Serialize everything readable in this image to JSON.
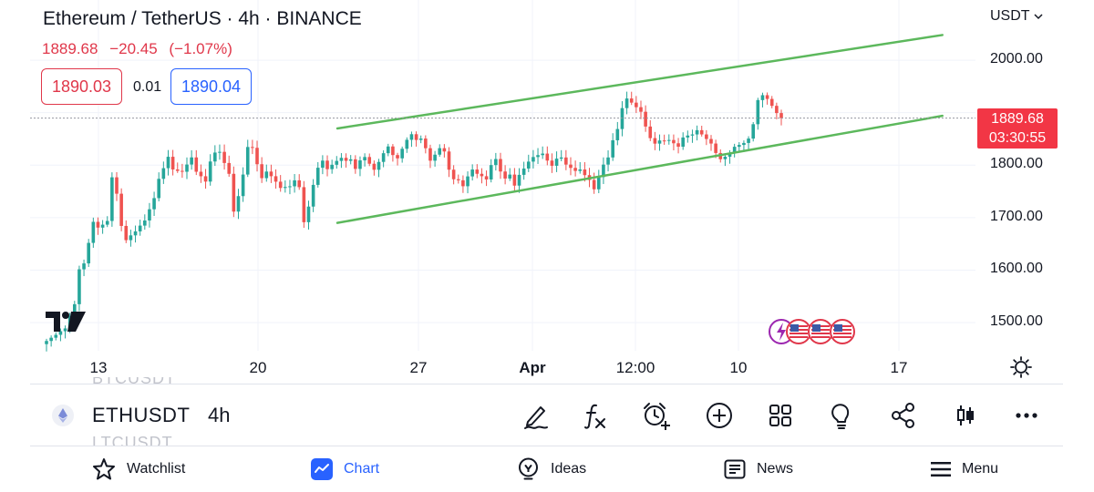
{
  "header": {
    "title": "Ethereum / TetherUS · 4h · BINANCE",
    "last": "1889.68",
    "change": "−20.45",
    "change_pct": "(−1.07%)"
  },
  "order": {
    "bid": "1890.03",
    "spread": "0.01",
    "ask": "1890.04"
  },
  "currency": "USDT",
  "axes": {
    "y_labels": [
      "2000.00",
      "1800.00",
      "1700.00",
      "1600.00",
      "1500.00"
    ],
    "x_labels": [
      {
        "label": "13",
        "bold": false
      },
      {
        "label": "20",
        "bold": false
      },
      {
        "label": "27",
        "bold": false
      },
      {
        "label": "Apr",
        "bold": true
      },
      {
        "label": "12:00",
        "bold": false
      },
      {
        "label": "10",
        "bold": false
      },
      {
        "label": "17",
        "bold": false
      }
    ]
  },
  "last_price_label": {
    "price": "1889.68",
    "countdown": "03:30:55"
  },
  "colors": {
    "up": "#26a69a",
    "down": "#ef5350",
    "channel": "#5cb85c",
    "accent": "#2962ff",
    "last": "#f23645"
  },
  "chart_data": {
    "type": "candlestick",
    "interval": "4h",
    "ylim": [
      1455,
      2080
    ],
    "last_price": 1889.68,
    "channel": [
      {
        "name": "upper",
        "from": {
          "t": 0.325,
          "price": 1870
        },
        "to": {
          "t": 0.965,
          "price": 2048
        }
      },
      {
        "name": "lower",
        "from": {
          "t": 0.325,
          "price": 1690
        },
        "to": {
          "t": 0.965,
          "price": 1894
        }
      }
    ],
    "close_path": [
      [
        0,
        1465
      ],
      [
        2,
        1470
      ],
      [
        4,
        1480
      ],
      [
        6,
        1530
      ],
      [
        7,
        1600
      ],
      [
        8,
        1615
      ],
      [
        10,
        1700
      ],
      [
        11,
        1690
      ],
      [
        13,
        1700
      ],
      [
        14,
        1780
      ],
      [
        15,
        1745
      ],
      [
        16,
        1680
      ],
      [
        17,
        1650
      ],
      [
        19,
        1665
      ],
      [
        21,
        1690
      ],
      [
        23,
        1740
      ],
      [
        24,
        1780
      ],
      [
        26,
        1825
      ],
      [
        27,
        1800
      ],
      [
        29,
        1790
      ],
      [
        31,
        1810
      ],
      [
        32,
        1780
      ],
      [
        34,
        1760
      ],
      [
        35,
        1800
      ],
      [
        36,
        1820
      ],
      [
        37,
        1825
      ],
      [
        39,
        1790
      ],
      [
        40,
        1720
      ],
      [
        41,
        1750
      ],
      [
        42,
        1790
      ],
      [
        43,
        1840
      ],
      [
        44,
        1835
      ],
      [
        45,
        1800
      ],
      [
        46,
        1770
      ],
      [
        47,
        1780
      ],
      [
        49,
        1760
      ],
      [
        50,
        1750
      ],
      [
        52,
        1760
      ],
      [
        53,
        1775
      ],
      [
        54,
        1765
      ],
      [
        55,
        1700
      ],
      [
        56,
        1730
      ],
      [
        57,
        1770
      ],
      [
        58,
        1800
      ],
      [
        59,
        1810
      ],
      [
        60,
        1790
      ],
      [
        61,
        1795
      ],
      [
        62,
        1800
      ],
      [
        63,
        1805
      ],
      [
        64,
        1800
      ],
      [
        65,
        1805
      ],
      [
        66,
        1790
      ],
      [
        67,
        1810
      ],
      [
        68,
        1820
      ],
      [
        69,
        1810
      ],
      [
        70,
        1800
      ],
      [
        71,
        1815
      ],
      [
        72,
        1830
      ],
      [
        73,
        1840
      ],
      [
        74,
        1820
      ],
      [
        75,
        1810
      ],
      [
        76,
        1825
      ],
      [
        77,
        1840
      ],
      [
        78,
        1850
      ],
      [
        79,
        1840
      ],
      [
        80,
        1845
      ],
      [
        81,
        1830
      ],
      [
        82,
        1810
      ],
      [
        83,
        1825
      ],
      [
        84,
        1840
      ],
      [
        85,
        1835
      ],
      [
        86,
        1800
      ],
      [
        87,
        1780
      ],
      [
        88,
        1775
      ],
      [
        89,
        1760
      ],
      [
        90,
        1775
      ],
      [
        91,
        1785
      ],
      [
        92,
        1775
      ],
      [
        93,
        1770
      ],
      [
        94,
        1765
      ],
      [
        95,
        1795
      ],
      [
        96,
        1810
      ],
      [
        97,
        1790
      ],
      [
        98,
        1780
      ],
      [
        99,
        1790
      ],
      [
        100,
        1770
      ],
      [
        101,
        1790
      ],
      [
        102,
        1800
      ],
      [
        103,
        1810
      ],
      [
        104,
        1815
      ],
      [
        106,
        1815
      ],
      [
        107,
        1800
      ],
      [
        108,
        1790
      ],
      [
        109,
        1805
      ],
      [
        110,
        1810
      ],
      [
        111,
        1800
      ],
      [
        113,
        1795
      ],
      [
        114,
        1800
      ],
      [
        115,
        1790
      ],
      [
        116,
        1780
      ],
      [
        117,
        1760
      ],
      [
        118,
        1780
      ],
      [
        119,
        1800
      ],
      [
        120,
        1810
      ],
      [
        121,
        1840
      ],
      [
        122,
        1860
      ],
      [
        123,
        1900
      ],
      [
        124,
        1920
      ],
      [
        125,
        1915
      ],
      [
        126,
        1910
      ],
      [
        127,
        1905
      ],
      [
        128,
        1880
      ],
      [
        129,
        1860
      ],
      [
        130,
        1850
      ],
      [
        131,
        1855
      ],
      [
        133,
        1850
      ],
      [
        134,
        1840
      ],
      [
        135,
        1830
      ],
      [
        136,
        1845
      ],
      [
        138,
        1850
      ],
      [
        139,
        1860
      ],
      [
        140,
        1855
      ],
      [
        141,
        1850
      ],
      [
        142,
        1845
      ],
      [
        143,
        1830
      ],
      [
        144,
        1820
      ],
      [
        145,
        1825
      ],
      [
        146,
        1830
      ],
      [
        147,
        1840
      ],
      [
        149,
        1840
      ],
      [
        150,
        1845
      ],
      [
        151,
        1870
      ],
      [
        152,
        1915
      ],
      [
        153,
        1925
      ],
      [
        154,
        1920
      ],
      [
        155,
        1910
      ],
      [
        156,
        1900
      ],
      [
        157,
        1889.68
      ]
    ]
  },
  "symbol_bar": {
    "ghost_top": "BTCUSDT",
    "symbol": "ETHUSDT",
    "timeframe": "4h",
    "ghost_bottom": "LTCUSDT",
    "tools": [
      "pencil-icon",
      "formula-icon",
      "alarm-add-icon",
      "add-circle-icon",
      "grid-icon",
      "lightbulb-icon",
      "share-icon",
      "candles-icon",
      "more-icon"
    ]
  },
  "nav": {
    "watchlist": "Watchlist",
    "chart": "Chart",
    "ideas": "Ideas",
    "news": "News",
    "menu": "Menu"
  }
}
